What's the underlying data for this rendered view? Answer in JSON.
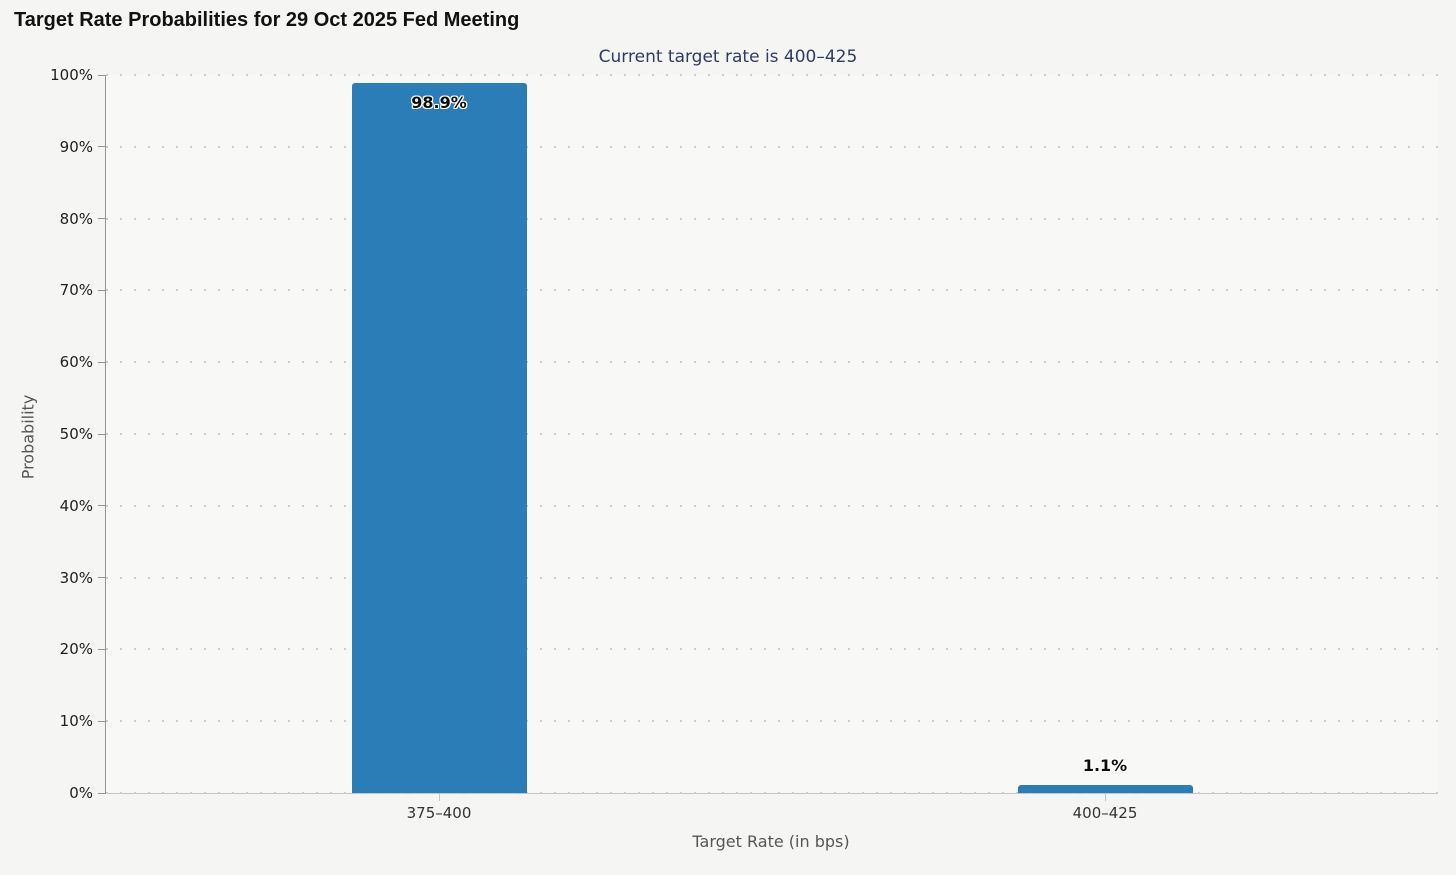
{
  "title": "Target Rate Probabilities for 29 Oct 2025 Fed Meeting",
  "subtitle": "Current target rate is 400–425",
  "chart_data": {
    "type": "bar",
    "title": "Target Rate Probabilities for 29 Oct 2025 Fed Meeting",
    "subtitle": "Current target rate is 400–425",
    "categories": [
      "375–400",
      "400–425"
    ],
    "values": [
      98.9,
      1.1
    ],
    "value_labels": [
      "98.9%",
      "1.1%"
    ],
    "xlabel": "Target Rate (in bps)",
    "ylabel": "Probability",
    "ylim": [
      0,
      100
    ],
    "ytick_step": 10,
    "ytick_labels": [
      "0%",
      "10%",
      "20%",
      "30%",
      "40%",
      "50%",
      "60%",
      "70%",
      "80%",
      "90%",
      "100%"
    ],
    "grid": "horizontal-dotted",
    "legend": "none",
    "bar_color": "#2a7db6"
  },
  "colors": {
    "background": "#f5f5f4",
    "bar": "#2a7db6",
    "subtitle_navy": "#2e3c62",
    "grid_dots": "#cccccc",
    "y_axis_line": "#949494",
    "x_axis_line": "#c4c4c4"
  }
}
